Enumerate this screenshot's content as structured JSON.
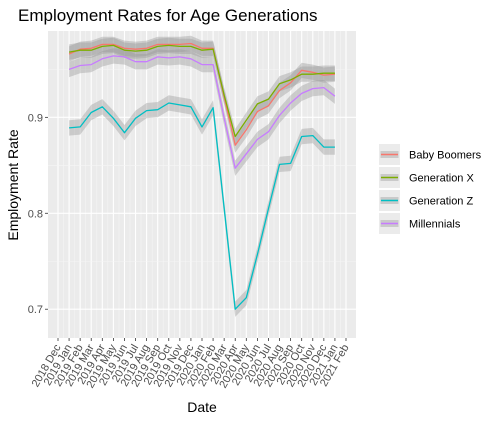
{
  "chart_data": {
    "type": "line",
    "title": "Employment Rates for Age Generations",
    "xlabel": "Date",
    "ylabel": "Employment Rate",
    "x_ticks": [
      "2018 Dec",
      "2019 Jan",
      "2019 Feb",
      "2019 Mar",
      "2019 Apr",
      "2019 May",
      "2019 Jun",
      "2019 Jul",
      "2019 Aug",
      "2019 Sep",
      "2019 Oct",
      "2019 Nov",
      "2019 Dec",
      "2020 Jan",
      "2020 Feb",
      "2020 Mar",
      "2020 Apr",
      "2020 May",
      "2020 Jun",
      "2020 Jul",
      "2020 Aug",
      "2020 Sep",
      "2020 Oct",
      "2020 Nov",
      "2020 Dec",
      "2021 Jan",
      "2021 Feb"
    ],
    "y_ticks": [
      "0.7",
      "0.8",
      "0.9"
    ],
    "ylim": [
      0.67,
      0.99
    ],
    "x": [
      "2019 Jan",
      "2019 Feb",
      "2019 Mar",
      "2019 Apr",
      "2019 May",
      "2019 Jun",
      "2019 Jul",
      "2019 Aug",
      "2019 Sep",
      "2019 Oct",
      "2019 Nov",
      "2019 Dec",
      "2020 Jan",
      "2020 Feb",
      "2020 Mar",
      "2020 Apr",
      "2020 May",
      "2020 Jun",
      "2020 Jul",
      "2020 Aug",
      "2020 Sep",
      "2020 Oct",
      "2020 Nov",
      "2020 Dec",
      "2021 Jan"
    ],
    "grid": true,
    "legend_position": "right",
    "confidence_band": true,
    "series": [
      {
        "name": "Baby Boomers",
        "color": "#F8766D",
        "values": [
          0.966,
          0.971,
          0.972,
          0.976,
          0.976,
          0.972,
          0.971,
          0.972,
          0.976,
          0.976,
          0.976,
          0.977,
          0.972,
          0.972,
          0.921,
          0.871,
          0.887,
          0.906,
          0.912,
          0.928,
          0.936,
          0.949,
          0.947,
          0.944,
          0.945
        ]
      },
      {
        "name": "Generation X",
        "color": "#7CAE00",
        "values": [
          0.968,
          0.97,
          0.97,
          0.974,
          0.975,
          0.97,
          0.969,
          0.97,
          0.974,
          0.975,
          0.974,
          0.974,
          0.97,
          0.971,
          0.923,
          0.88,
          0.897,
          0.914,
          0.919,
          0.935,
          0.939,
          0.945,
          0.945,
          0.946,
          0.946
        ]
      },
      {
        "name": "Generation Z",
        "color": "#00BFC4",
        "values": [
          0.889,
          0.89,
          0.905,
          0.911,
          0.899,
          0.884,
          0.899,
          0.907,
          0.908,
          0.915,
          0.913,
          0.911,
          0.89,
          0.91,
          0.805,
          0.7,
          0.712,
          0.757,
          0.805,
          0.851,
          0.852,
          0.88,
          0.881,
          0.869,
          0.869
        ]
      },
      {
        "name": "Millennials",
        "color": "#C77CFF",
        "values": [
          0.95,
          0.954,
          0.955,
          0.961,
          0.964,
          0.963,
          0.958,
          0.958,
          0.963,
          0.962,
          0.963,
          0.961,
          0.955,
          0.955,
          0.899,
          0.847,
          0.862,
          0.877,
          0.885,
          0.902,
          0.915,
          0.925,
          0.93,
          0.931,
          0.922
        ]
      }
    ]
  }
}
